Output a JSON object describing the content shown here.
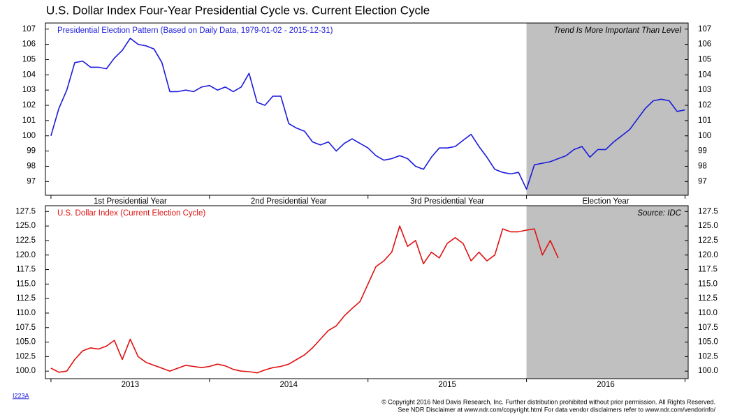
{
  "title": "U.S. Dollar Index Four-Year Presidential Cycle vs. Current Election Cycle",
  "chart_data": [
    {
      "type": "line",
      "label": "Presidential Election Pattern (Based on Daily Data, 1979-01-02 - 2015-12-31)",
      "note": "Trend Is More Important Than Level",
      "categories": [
        "1st Presidential Year",
        "2nd Presidential Year",
        "3rd Presidential Year",
        "Election Year"
      ],
      "category_edges": [
        0,
        1,
        2,
        3,
        4
      ],
      "highlight_x": [
        3,
        4.02
      ],
      "highlight_color": "#c0c0c0",
      "xlim": [
        -0.035,
        4.02
      ],
      "ylim": [
        96.1,
        107.4
      ],
      "yticks": [
        97,
        98,
        99,
        100,
        101,
        102,
        103,
        104,
        105,
        106,
        107
      ],
      "x": [
        0,
        0.05,
        0.1,
        0.15,
        0.2,
        0.25,
        0.3,
        0.35,
        0.4,
        0.45,
        0.5,
        0.55,
        0.6,
        0.65,
        0.7,
        0.75,
        0.8,
        0.85,
        0.9,
        0.95,
        1,
        1.05,
        1.1,
        1.15,
        1.2,
        1.25,
        1.3,
        1.35,
        1.4,
        1.45,
        1.5,
        1.55,
        1.6,
        1.65,
        1.7,
        1.75,
        1.8,
        1.85,
        1.9,
        1.95,
        2,
        2.05,
        2.1,
        2.15,
        2.2,
        2.25,
        2.3,
        2.35,
        2.4,
        2.45,
        2.5,
        2.55,
        2.6,
        2.65,
        2.7,
        2.75,
        2.8,
        2.85,
        2.9,
        2.95,
        3,
        3.05,
        3.1,
        3.15,
        3.2,
        3.25,
        3.3,
        3.35,
        3.4,
        3.45,
        3.5,
        3.55,
        3.6,
        3.65,
        3.7,
        3.75,
        3.8,
        3.85,
        3.9,
        3.95,
        4
      ],
      "series": [
        {
          "color": "#1a1adb",
          "values": [
            100,
            101.8,
            103,
            104.8,
            104.9,
            104.5,
            104.5,
            104.4,
            105.1,
            105.6,
            106.4,
            106,
            105.9,
            105.7,
            104.8,
            102.9,
            102.9,
            103,
            102.9,
            103.2,
            103.3,
            103,
            103.2,
            102.9,
            103.2,
            104.1,
            102.2,
            102,
            102.6,
            102.6,
            100.8,
            100.5,
            100.3,
            99.6,
            99.4,
            99.6,
            99,
            99.5,
            99.8,
            99.5,
            99.2,
            98.7,
            98.4,
            98.5,
            98.7,
            98.5,
            98,
            97.8,
            98.6,
            99.2,
            99.2,
            99.3,
            99.7,
            100.1,
            99.3,
            98.6,
            97.8,
            97.6,
            97.5,
            97.6,
            96.5,
            98.1,
            98.2,
            98.3,
            98.5,
            98.7,
            99.1,
            99.3,
            98.6,
            99.1,
            99.1,
            99.6,
            100,
            100.4,
            101.1,
            101.8,
            102.3,
            102.4,
            102.3,
            101.6,
            101.7
          ]
        }
      ]
    },
    {
      "type": "line",
      "label": "U.S. Dollar Index (Current Election Cycle)",
      "note": "Source:   IDC",
      "categories": [
        "2013",
        "2014",
        "2015",
        "2016"
      ],
      "category_edges": [
        2013,
        2014,
        2015,
        2016,
        2017
      ],
      "highlight_x": [
        2016,
        2017.02
      ],
      "highlight_color": "#c0c0c0",
      "xlim": [
        2012.965,
        2017.02
      ],
      "ylim": [
        98.7,
        128.5
      ],
      "yticks": [
        {
          "value": 100,
          "label": "100.0"
        },
        102.5,
        {
          "value": 105,
          "label": "105.0"
        },
        107.5,
        {
          "value": 110,
          "label": "110.0"
        },
        112.5,
        {
          "value": 115,
          "label": "115.0"
        },
        117.5,
        {
          "value": 120,
          "label": "120.0"
        },
        122.5,
        {
          "value": 125,
          "label": "125.0"
        },
        127.5
      ],
      "x": [
        2013,
        2013.05,
        2013.1,
        2013.15,
        2013.2,
        2013.25,
        2013.3,
        2013.35,
        2013.4,
        2013.45,
        2013.5,
        2013.55,
        2013.6,
        2013.65,
        2013.7,
        2013.75,
        2013.8,
        2013.85,
        2013.9,
        2013.95,
        2014,
        2014.05,
        2014.1,
        2014.15,
        2014.2,
        2014.25,
        2014.3,
        2014.35,
        2014.4,
        2014.45,
        2014.5,
        2014.55,
        2014.6,
        2014.65,
        2014.7,
        2014.75,
        2014.8,
        2014.85,
        2014.9,
        2014.95,
        2015,
        2015.05,
        2015.1,
        2015.15,
        2015.2,
        2015.25,
        2015.3,
        2015.35,
        2015.4,
        2015.45,
        2015.5,
        2015.55,
        2015.6,
        2015.65,
        2015.7,
        2015.75,
        2015.8,
        2015.85,
        2015.9,
        2015.95,
        2016,
        2016.05,
        2016.1,
        2016.15,
        2016.2
      ],
      "series": [
        {
          "color": "#e01010",
          "values": [
            100.5,
            99.8,
            100,
            102,
            103.5,
            104,
            103.8,
            104.3,
            105.3,
            102,
            105.5,
            102.5,
            101.5,
            101,
            100.5,
            100,
            100.5,
            101,
            100.8,
            100.6,
            100.8,
            101.2,
            100.9,
            100.3,
            100,
            99.9,
            99.7,
            100.2,
            100.6,
            100.8,
            101.2,
            102,
            102.8,
            104,
            105.5,
            107,
            107.8,
            109.5,
            110.8,
            112,
            115,
            118,
            119,
            120.5,
            125,
            121.5,
            122.5,
            118.5,
            120.5,
            119.5,
            122,
            123,
            122,
            119,
            120.5,
            119,
            120,
            124.5,
            124,
            124,
            124.3,
            124.5,
            120,
            122.5,
            119.5
          ]
        }
      ]
    }
  ],
  "footer": {
    "code": "I223A",
    "lines": [
      "© Copyright 2016 Ned Davis Research, Inc. Further distribution prohibited without prior permission. All Rights Reserved.",
      "See NDR Disclaimer at www.ndr.com/copyright.html  For data vendor disclaimers refer to www.ndr.com/vendorinfo/"
    ]
  }
}
